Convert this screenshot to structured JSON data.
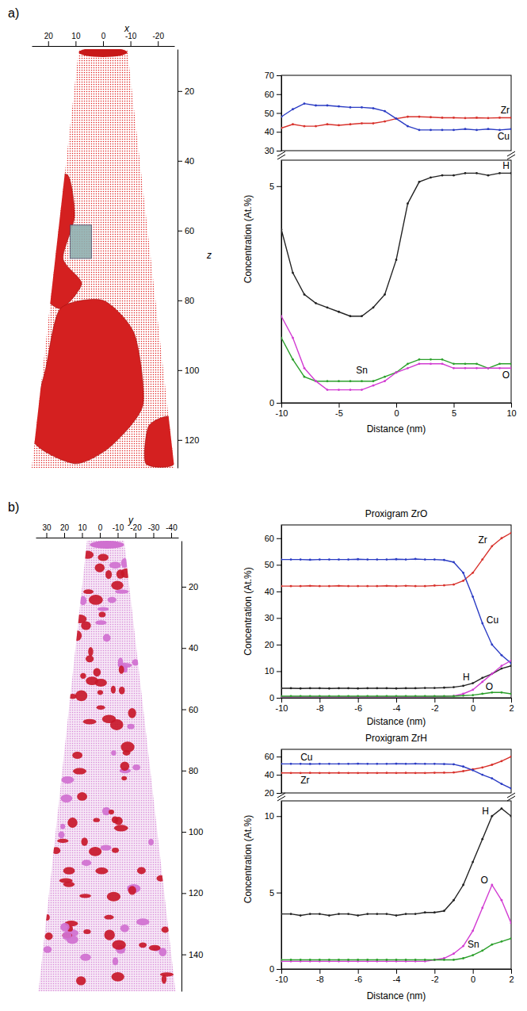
{
  "chart_data": [
    {
      "type": "reconstruction",
      "panel": "a)",
      "xlabel": "x",
      "xlim": [
        26,
        -26
      ],
      "xticks": [
        20,
        10,
        0,
        -10,
        -20
      ],
      "ylabel": "z",
      "ylim": [
        8,
        128
      ],
      "yticks": [
        20,
        40,
        60,
        80,
        100,
        120
      ]
    },
    {
      "type": "line",
      "xlabel": "Distance (nm)",
      "ylabel": "Concentration (At.%)",
      "x": [
        -10,
        -9,
        -8,
        -7,
        -6,
        -5,
        -4,
        -3,
        -2,
        -1,
        0,
        1,
        2,
        3,
        4,
        5,
        6,
        7,
        8,
        9,
        10
      ],
      "xlim": [
        -10,
        10
      ],
      "xticks": [
        -10,
        -5,
        0,
        5,
        10
      ],
      "segments": [
        {
          "ylim": [
            30,
            70
          ],
          "yticks": [
            30,
            40,
            50,
            60,
            70
          ],
          "series": [
            {
              "name": "Zr",
              "color": "#d8322c",
              "values": [
                42,
                44,
                43,
                43,
                44,
                43.5,
                44,
                44.5,
                44.5,
                45.5,
                47,
                48,
                48,
                47.8,
                47.5,
                47.5,
                47.3,
                47.5,
                47.3,
                47.5,
                47.5
              ]
            },
            {
              "name": "Cu",
              "color": "#2b3cc4",
              "values": [
                48,
                52,
                55,
                54,
                54,
                53.5,
                53,
                53,
                52.5,
                51,
                47,
                43,
                41,
                41,
                41,
                41,
                41.5,
                41,
                41.5,
                41,
                41.5
              ]
            }
          ]
        },
        {
          "ylim": [
            0,
            5.6
          ],
          "yticks": [
            0,
            5
          ],
          "series": [
            {
              "name": "H",
              "color": "#222222",
              "values": [
                4,
                3,
                2.5,
                2.3,
                2.2,
                2.1,
                2,
                2,
                2.2,
                2.5,
                3.3,
                4.6,
                5.1,
                5.2,
                5.25,
                5.25,
                5.3,
                5.3,
                5.25,
                5.3,
                5.3
              ]
            },
            {
              "name": "Sn",
              "color": "#2ca02c",
              "values": [
                1.5,
                1,
                0.6,
                0.5,
                0.5,
                0.5,
                0.5,
                0.5,
                0.5,
                0.6,
                0.7,
                0.9,
                1,
                1,
                1,
                0.9,
                0.9,
                0.9,
                0.8,
                0.9,
                0.9
              ]
            },
            {
              "name": "O",
              "color": "#d23cd2",
              "values": [
                2,
                1.5,
                0.8,
                0.5,
                0.3,
                0.3,
                0.3,
                0.3,
                0.4,
                0.5,
                0.7,
                0.8,
                0.9,
                0.9,
                0.9,
                0.8,
                0.8,
                0.8,
                0.8,
                0.8,
                0.8
              ]
            }
          ]
        }
      ]
    },
    {
      "type": "reconstruction",
      "panel": "b)",
      "xlabel": "y",
      "xlim": [
        36,
        -44
      ],
      "xticks": [
        30,
        20,
        10,
        0,
        -10,
        -20,
        -30,
        -40
      ],
      "ylim": [
        5,
        152
      ],
      "yticks": [
        20,
        40,
        60,
        80,
        100,
        120,
        140
      ]
    },
    {
      "type": "line",
      "title": "Proxigram ZrO",
      "xlabel": "Distance (nm)",
      "ylabel": "Concentration (At.%)",
      "x": [
        -10,
        -9.5,
        -9,
        -8.5,
        -8,
        -7.5,
        -7,
        -6.5,
        -6,
        -5.5,
        -5,
        -4.5,
        -4,
        -3.5,
        -3,
        -2.5,
        -2,
        -1.5,
        -1,
        -0.5,
        0,
        0.5,
        1,
        1.5,
        2
      ],
      "xlim": [
        -10,
        2
      ],
      "xticks": [
        -10,
        -8,
        -6,
        -4,
        -2,
        0,
        2
      ],
      "segments": [
        {
          "ylim": [
            0,
            65
          ],
          "yticks": [
            0,
            10,
            20,
            30,
            40,
            50,
            60
          ],
          "series": [
            {
              "name": "Zr",
              "color": "#d8322c",
              "values": [
                42,
                42,
                42,
                42.1,
                42,
                42,
                42.1,
                42,
                42,
                42,
                42,
                42.1,
                42,
                42.1,
                42,
                42,
                42.2,
                42.3,
                42.6,
                44,
                47,
                52,
                57,
                60,
                62
              ]
            },
            {
              "name": "Cu",
              "color": "#2b3cc4",
              "values": [
                52,
                52,
                52,
                51.9,
                52,
                52,
                52,
                52,
                52.1,
                52,
                52,
                52,
                52.1,
                52,
                52.2,
                52,
                52,
                51.8,
                51,
                47,
                38,
                28,
                20,
                16,
                13
              ]
            },
            {
              "name": "H",
              "color": "#222222",
              "values": [
                3.6,
                3.6,
                3.5,
                3.6,
                3.6,
                3.5,
                3.6,
                3.6,
                3.5,
                3.6,
                3.6,
                3.6,
                3.5,
                3.6,
                3.6,
                3.7,
                3.7,
                3.8,
                4,
                4.5,
                5.5,
                7.5,
                9,
                11,
                12
              ]
            },
            {
              "name": "O",
              "color": "#d23cd2",
              "values": [
                0.4,
                0.4,
                0.4,
                0.4,
                0.4,
                0.4,
                0.4,
                0.4,
                0.4,
                0.4,
                0.4,
                0.4,
                0.4,
                0.4,
                0.4,
                0.4,
                0.5,
                0.5,
                0.7,
                1.5,
                3,
                6,
                9,
                12,
                14
              ]
            },
            {
              "color": "#2ca02c",
              "values": [
                0.6,
                0.6,
                0.6,
                0.6,
                0.6,
                0.6,
                0.6,
                0.6,
                0.6,
                0.6,
                0.6,
                0.6,
                0.6,
                0.6,
                0.6,
                0.6,
                0.6,
                0.6,
                0.6,
                0.8,
                1,
                1.5,
                2,
                2,
                1.5
              ]
            }
          ]
        }
      ]
    },
    {
      "type": "line",
      "title": "Proxigram ZrH",
      "xlabel": "Distance (nm)",
      "ylabel": "Concentration (At.%)",
      "x": [
        -10,
        -9.5,
        -9,
        -8.5,
        -8,
        -7.5,
        -7,
        -6.5,
        -6,
        -5.5,
        -5,
        -4.5,
        -4,
        -3.5,
        -3,
        -2.5,
        -2,
        -1.5,
        -1,
        -0.5,
        0,
        0.5,
        1,
        1.5,
        2
      ],
      "xlim": [
        -10,
        2
      ],
      "xticks": [
        -10,
        -8,
        -6,
        -4,
        -2,
        0,
        2
      ],
      "segments": [
        {
          "ylim": [
            20,
            68
          ],
          "yticks": [
            20,
            40,
            60
          ],
          "series": [
            {
              "name": "Zr",
              "color": "#d8322c",
              "values": [
                42,
                42,
                42,
                42.1,
                42,
                42,
                42.1,
                42,
                42,
                42,
                42,
                42.1,
                42,
                42.1,
                42,
                42,
                42.2,
                42.3,
                42.5,
                44,
                46,
                48,
                51,
                55,
                60
              ]
            },
            {
              "name": "Cu",
              "color": "#2b3cc4",
              "values": [
                52,
                52,
                52,
                51.9,
                52,
                52,
                52,
                52,
                52.1,
                52,
                52,
                52,
                52.1,
                52,
                52.2,
                52,
                52,
                51.8,
                51.5,
                49,
                45,
                40,
                36,
                30,
                25
              ]
            }
          ]
        },
        {
          "ylim": [
            0,
            11
          ],
          "yticks": [
            0,
            5,
            10
          ],
          "series": [
            {
              "name": "H",
              "color": "#222222",
              "values": [
                3.6,
                3.6,
                3.5,
                3.6,
                3.6,
                3.5,
                3.6,
                3.6,
                3.5,
                3.6,
                3.6,
                3.6,
                3.5,
                3.6,
                3.6,
                3.7,
                3.7,
                3.8,
                4.5,
                5.5,
                7,
                8.5,
                10,
                10.5,
                10
              ]
            },
            {
              "name": "O",
              "color": "#d23cd2",
              "values": [
                0.5,
                0.5,
                0.5,
                0.5,
                0.5,
                0.5,
                0.5,
                0.5,
                0.5,
                0.5,
                0.5,
                0.5,
                0.5,
                0.5,
                0.5,
                0.5,
                0.6,
                0.7,
                1,
                1.5,
                2.5,
                4,
                5.5,
                4.5,
                3
              ]
            },
            {
              "name": "Sn",
              "color": "#2ca02c",
              "values": [
                0.6,
                0.6,
                0.6,
                0.6,
                0.6,
                0.6,
                0.6,
                0.6,
                0.6,
                0.6,
                0.6,
                0.6,
                0.6,
                0.6,
                0.6,
                0.6,
                0.6,
                0.6,
                0.6,
                0.7,
                0.9,
                1.2,
                1.6,
                1.8,
                2
              ]
            }
          ]
        }
      ]
    }
  ]
}
